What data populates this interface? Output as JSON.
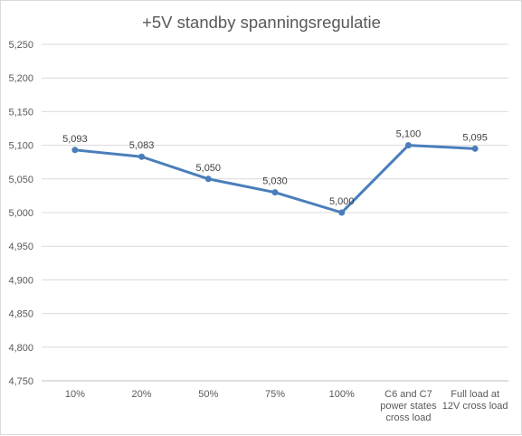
{
  "chart_data": {
    "type": "line",
    "title": "+5V standby spanningsregulatie",
    "categories": [
      [
        "10%"
      ],
      [
        "20%"
      ],
      [
        "50%"
      ],
      [
        "75%"
      ],
      [
        "100%"
      ],
      [
        "C6 and C7",
        "power states",
        "cross load"
      ],
      [
        "Full load at",
        "12V cross load"
      ]
    ],
    "series": [
      {
        "values": [
          5.093,
          5.083,
          5.05,
          5.03,
          5.0,
          5.1,
          5.095
        ],
        "labels": [
          "5,093",
          "5,083",
          "5,050",
          "5,030",
          "5,000",
          "5,100",
          "5,095"
        ],
        "color": "#4a7ebb"
      }
    ],
    "ylim": [
      4.75,
      5.25
    ],
    "yticks": [
      "4,750",
      "4,800",
      "4,850",
      "4,900",
      "4,950",
      "5,000",
      "5,050",
      "5,100",
      "5,150",
      "5,200",
      "5,250"
    ],
    "grid": true,
    "legend": "none"
  }
}
